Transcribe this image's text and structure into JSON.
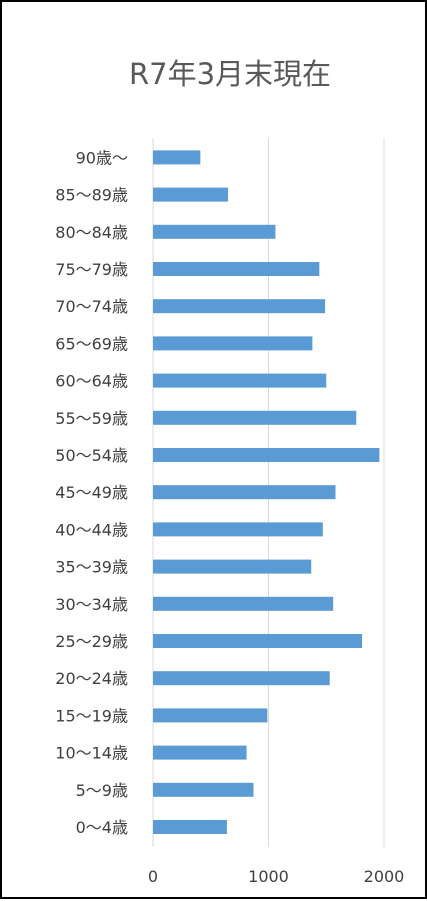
{
  "chart_data": {
    "type": "bar",
    "orientation": "horizontal",
    "title": "R7年3月末現在",
    "categories": [
      "0〜4歳",
      "5〜9歳",
      "10〜14歳",
      "15〜19歳",
      "20〜24歳",
      "25〜29歳",
      "30〜34歳",
      "35〜39歳",
      "40〜44歳",
      "45〜49歳",
      "50〜54歳",
      "55〜59歳",
      "60〜64歳",
      "65〜69歳",
      "70〜74歳",
      "75〜79歳",
      "80〜84歳",
      "85〜89歳",
      "90歳〜"
    ],
    "values": [
      640,
      870,
      810,
      990,
      1530,
      1810,
      1560,
      1370,
      1470,
      1580,
      1960,
      1760,
      1500,
      1380,
      1490,
      1440,
      1060,
      650,
      410
    ],
    "xlim": [
      0,
      2000
    ],
    "xticks": [
      0,
      1000,
      2000
    ],
    "xlabel": "",
    "ylabel": "",
    "gridlines": "vertical",
    "legend": "none",
    "bar_color": "#5B9BD5",
    "grid_color": "#D9D9D9"
  }
}
